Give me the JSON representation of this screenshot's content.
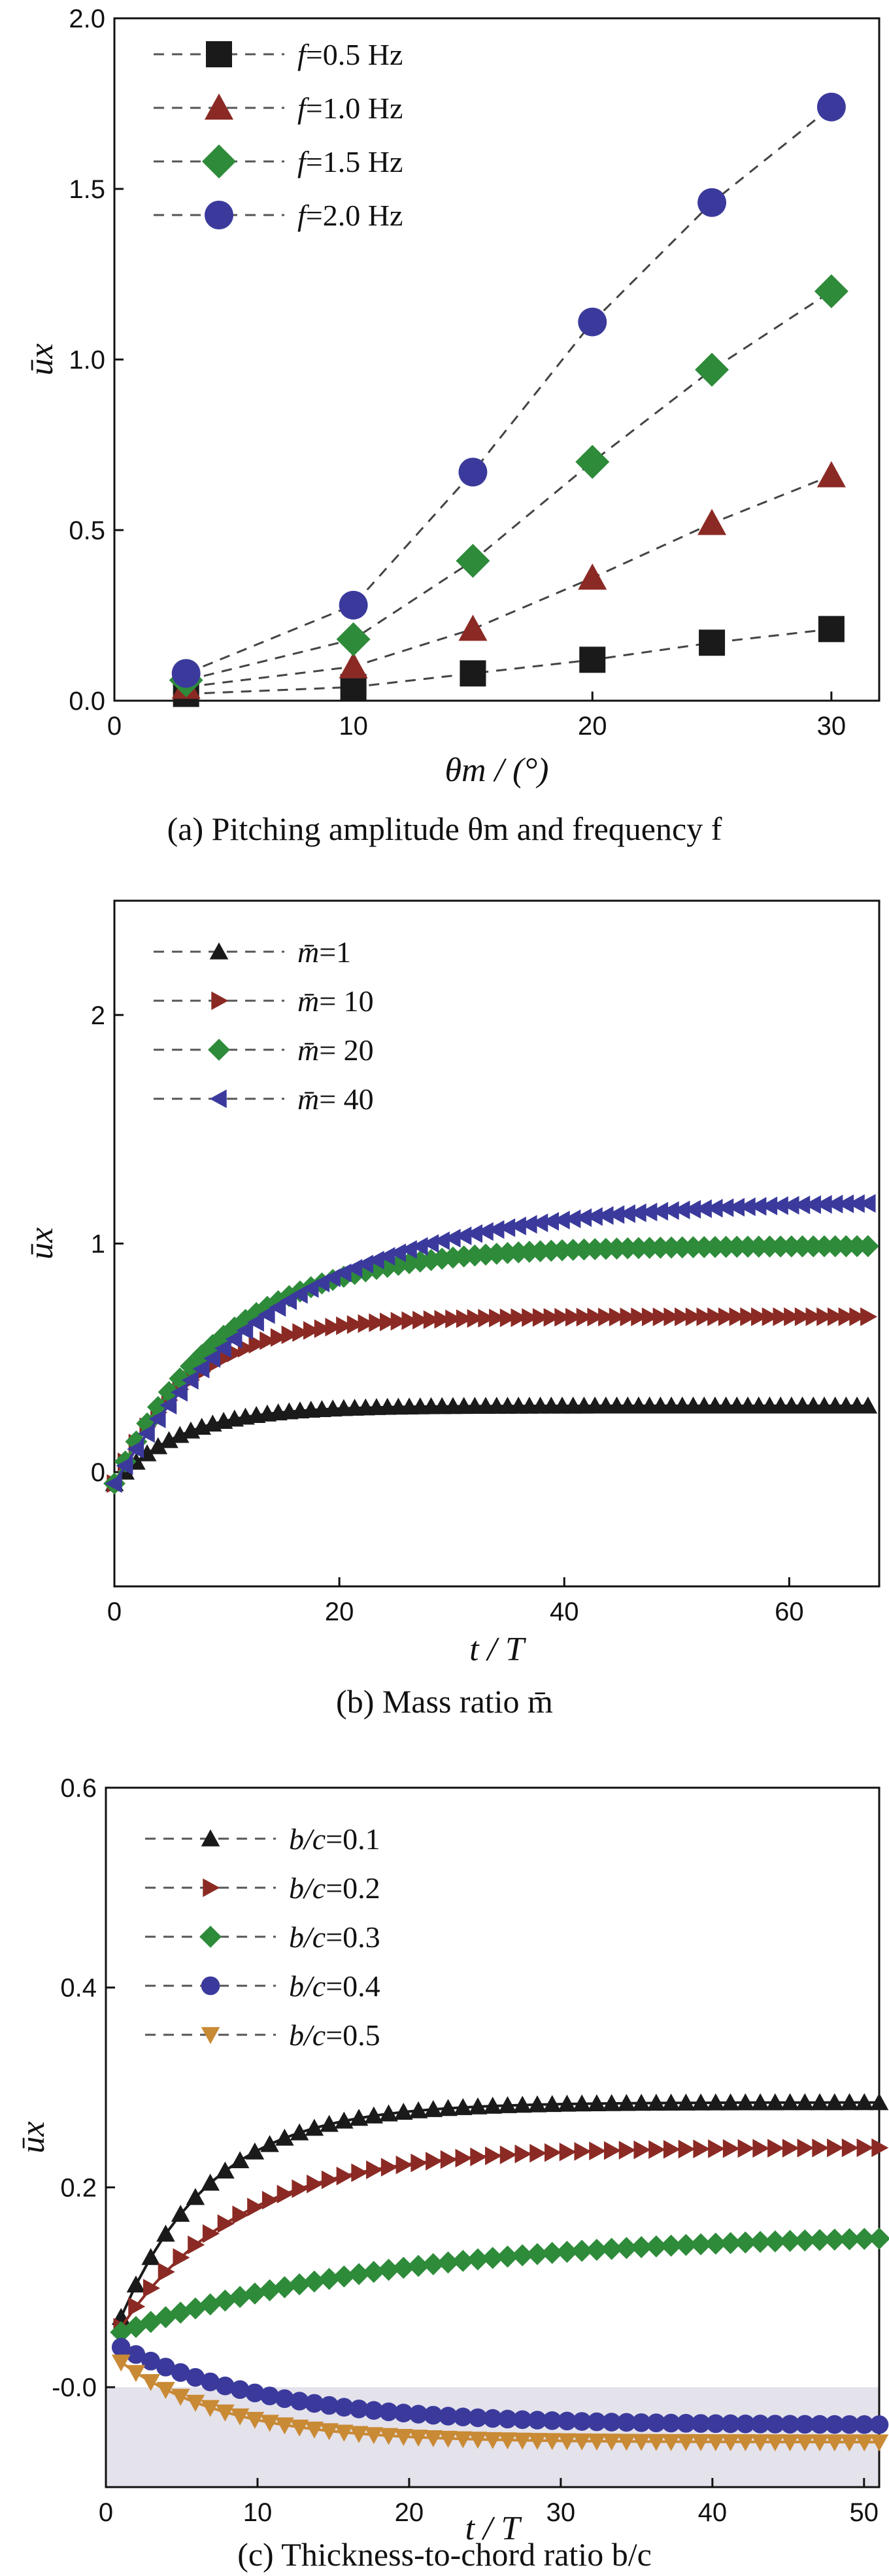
{
  "chart_data": [
    {
      "type": "scatter",
      "caption": "(a) Pitching amplitude θm and frequency f",
      "xlabel": "θm / (°)",
      "ylabel": "ūx",
      "xlim": [
        0,
        32
      ],
      "ylim": [
        0,
        2.0
      ],
      "xticks": [
        "0",
        "10",
        "20",
        "30"
      ],
      "yticks": [
        "0.0",
        "0.5",
        "1.0",
        "1.5",
        "2.0"
      ],
      "x": [
        3,
        10,
        15,
        20,
        25,
        30
      ],
      "legend_position": "top-left",
      "series": [
        {
          "name": "f=0.5 Hz",
          "marker": "square",
          "color": "#1a1a1a",
          "values": [
            0.02,
            0.04,
            0.08,
            0.12,
            0.17,
            0.21
          ]
        },
        {
          "name": "f=1.0 Hz",
          "marker": "triangle-up",
          "color": "#8b2a24",
          "values": [
            0.04,
            0.1,
            0.21,
            0.36,
            0.52,
            0.66
          ]
        },
        {
          "name": "f=1.5 Hz",
          "marker": "diamond",
          "color": "#2e8b3a",
          "values": [
            0.06,
            0.18,
            0.41,
            0.7,
            0.97,
            1.2
          ]
        },
        {
          "name": "f=2.0 Hz",
          "marker": "circle",
          "color": "#3b3a9c",
          "values": [
            0.08,
            0.28,
            0.67,
            1.11,
            1.46,
            1.74
          ]
        }
      ]
    },
    {
      "type": "line",
      "caption": "(b) Mass ratio m̄",
      "xlabel": "t / T",
      "ylabel": "ūx",
      "xlim": [
        0,
        68
      ],
      "ylim": [
        -0.5,
        2.5
      ],
      "xticks": [
        "0",
        "20",
        "40",
        "60"
      ],
      "yticks": [
        "0",
        "1",
        "2"
      ],
      "x_start": 0,
      "x_end": 67,
      "legend_position": "top-left",
      "series": [
        {
          "name": "m̄=1",
          "marker": "triangle-up",
          "color": "#1a1a1a",
          "start": -0.05,
          "final": 0.29,
          "tau": 6
        },
        {
          "name": "m̄= 10",
          "marker": "triangle-right",
          "color": "#8b2a24",
          "start": -0.05,
          "final": 0.68,
          "tau": 7
        },
        {
          "name": "m̄= 20",
          "marker": "diamond",
          "color": "#2e8b3a",
          "start": -0.05,
          "final": 0.99,
          "tau": 10
        },
        {
          "name": "m̄= 40",
          "marker": "triangle-left",
          "color": "#3b3a9c",
          "start": -0.05,
          "final": 1.19,
          "tau": 15
        }
      ]
    },
    {
      "type": "line",
      "caption": "(c) Thickness-to-chord ratio b/c",
      "xlabel": "t / T",
      "ylabel": "ūx",
      "xlim": [
        0,
        51
      ],
      "ylim": [
        -0.1,
        0.6
      ],
      "xticks": [
        "0",
        "10",
        "20",
        "30",
        "40",
        "50"
      ],
      "yticks": [
        "-0.0",
        "0.2",
        "0.4",
        "0.6"
      ],
      "x_start": 1,
      "x_end": 51,
      "legend_position": "top-left",
      "series": [
        {
          "name": "b/c=0.1",
          "marker": "triangle-up",
          "color": "#1a1a1a",
          "start": 0.07,
          "final": 0.285,
          "tau": 6
        },
        {
          "name": "b/c=0.2",
          "marker": "triangle-right",
          "color": "#8b2a24",
          "start": 0.06,
          "final": 0.24,
          "tau": 8
        },
        {
          "name": "b/c=0.3",
          "marker": "diamond",
          "color": "#2e8b3a",
          "start": 0.055,
          "final": 0.155,
          "tau": 18
        },
        {
          "name": "b/c=0.4",
          "marker": "circle",
          "color": "#3b3a9c",
          "start": 0.04,
          "final": -0.038,
          "tau": 10
        },
        {
          "name": "b/c=0.5",
          "marker": "triangle-down",
          "color": "#c98a35",
          "start": 0.025,
          "final": -0.055,
          "tau": 7
        }
      ]
    }
  ]
}
